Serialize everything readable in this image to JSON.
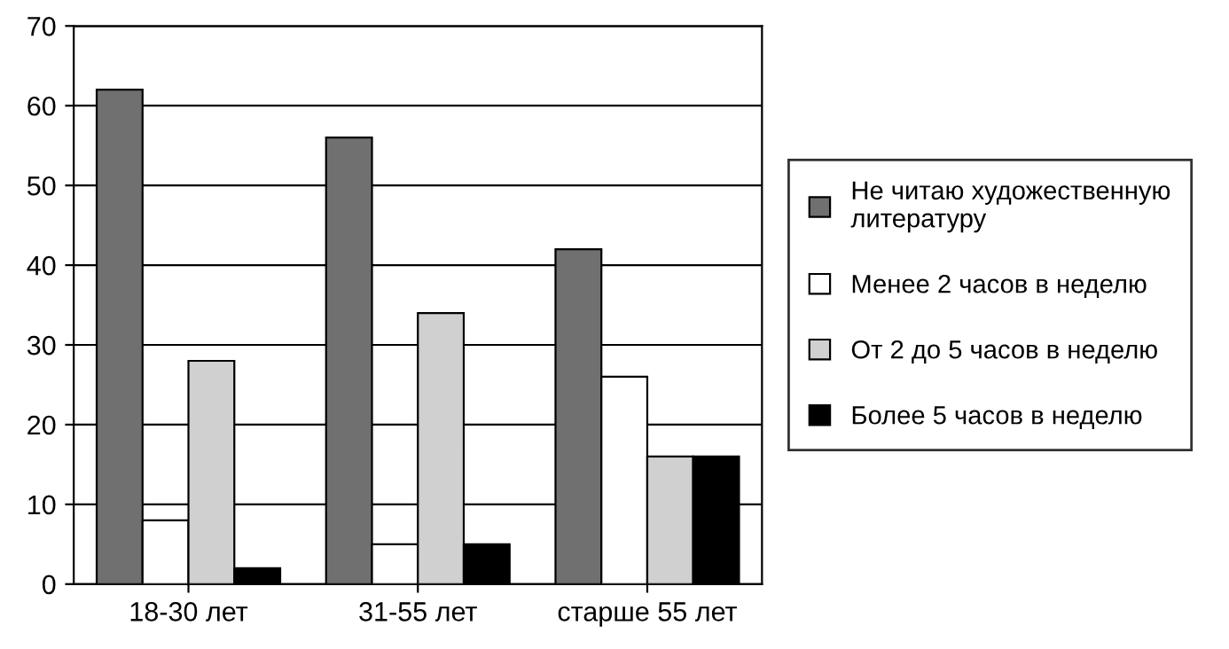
{
  "chart_data": {
    "type": "bar",
    "categories": [
      "18-30 лет",
      "31-55 лет",
      "старше 55 лет"
    ],
    "series": [
      {
        "name": "Не читаю художественную литературу",
        "color": "#707070",
        "values": [
          62,
          56,
          42
        ]
      },
      {
        "name": "Менее 2 часов в неделю",
        "color": "#ffffff",
        "values": [
          8,
          5,
          26
        ]
      },
      {
        "name": "От 2 до 5 часов в неделю",
        "color": "#d0d0d0",
        "values": [
          28,
          34,
          16
        ]
      },
      {
        "name": "Более 5 часов в неделю",
        "color": "#000000",
        "values": [
          2,
          5,
          16
        ]
      }
    ],
    "ylim": [
      0,
      70
    ],
    "yticks": [
      0,
      10,
      20,
      30,
      40,
      50,
      60,
      70
    ],
    "grid": "y",
    "legend": "right"
  }
}
